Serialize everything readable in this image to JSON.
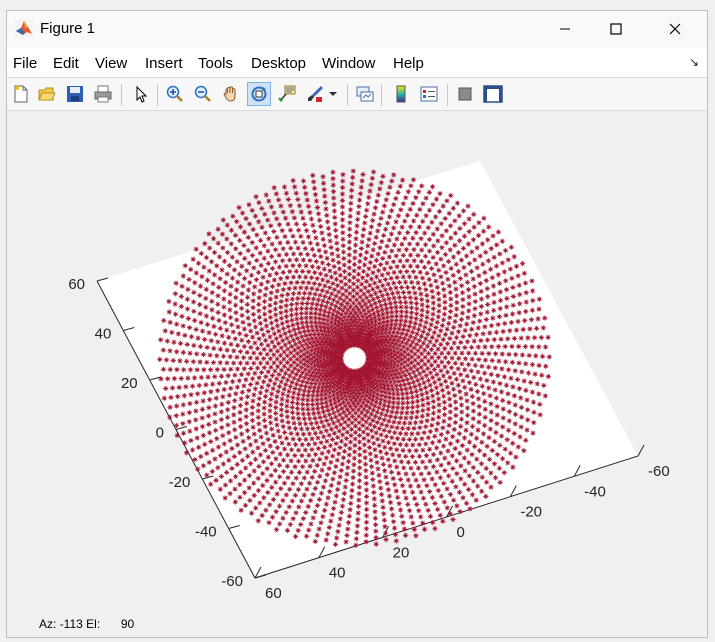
{
  "window": {
    "title": "Figure 1"
  },
  "menubar": {
    "items": [
      "File",
      "Edit",
      "View",
      "Insert",
      "Tools",
      "Desktop",
      "Window",
      "Help"
    ],
    "corner_glyph": "↘"
  },
  "toolbar": {
    "buttons": [
      "new-figure-icon",
      "open-file-icon",
      "save-icon",
      "print-icon",
      "select-arrow-icon",
      "zoom-in-icon",
      "zoom-out-icon",
      "pan-hand-icon",
      "rotate-3d-icon",
      "data-tips-icon",
      "brush-icon",
      "brush-dropdown-icon",
      "link-plot-icon",
      "insert-colorbar-icon",
      "insert-legend-icon",
      "hide-plot-tools-icon",
      "show-plot-tools-icon"
    ],
    "active_button": "rotate-3d-icon"
  },
  "status": {
    "az_label": "Az:",
    "az_value": "-113",
    "el_label": "El:",
    "el_value": "90"
  },
  "chart_data": {
    "type": "scatter",
    "marker": "*",
    "marker_color": "#a2142f",
    "view": {
      "azimuth": -113,
      "elevation": 90
    },
    "xlim": [
      -60,
      60
    ],
    "ylim": [
      -60,
      60
    ],
    "x_ticks": [
      "-60",
      "-40",
      "-20",
      "0",
      "20",
      "40",
      "60"
    ],
    "y_ticks": [
      "60",
      "40",
      "20",
      "0",
      "-20",
      "-40",
      "-60"
    ],
    "description_of_data": {
      "shape": "annulus of points along spiral arms",
      "inner_radius": 4,
      "outer_radius": 57
    }
  }
}
